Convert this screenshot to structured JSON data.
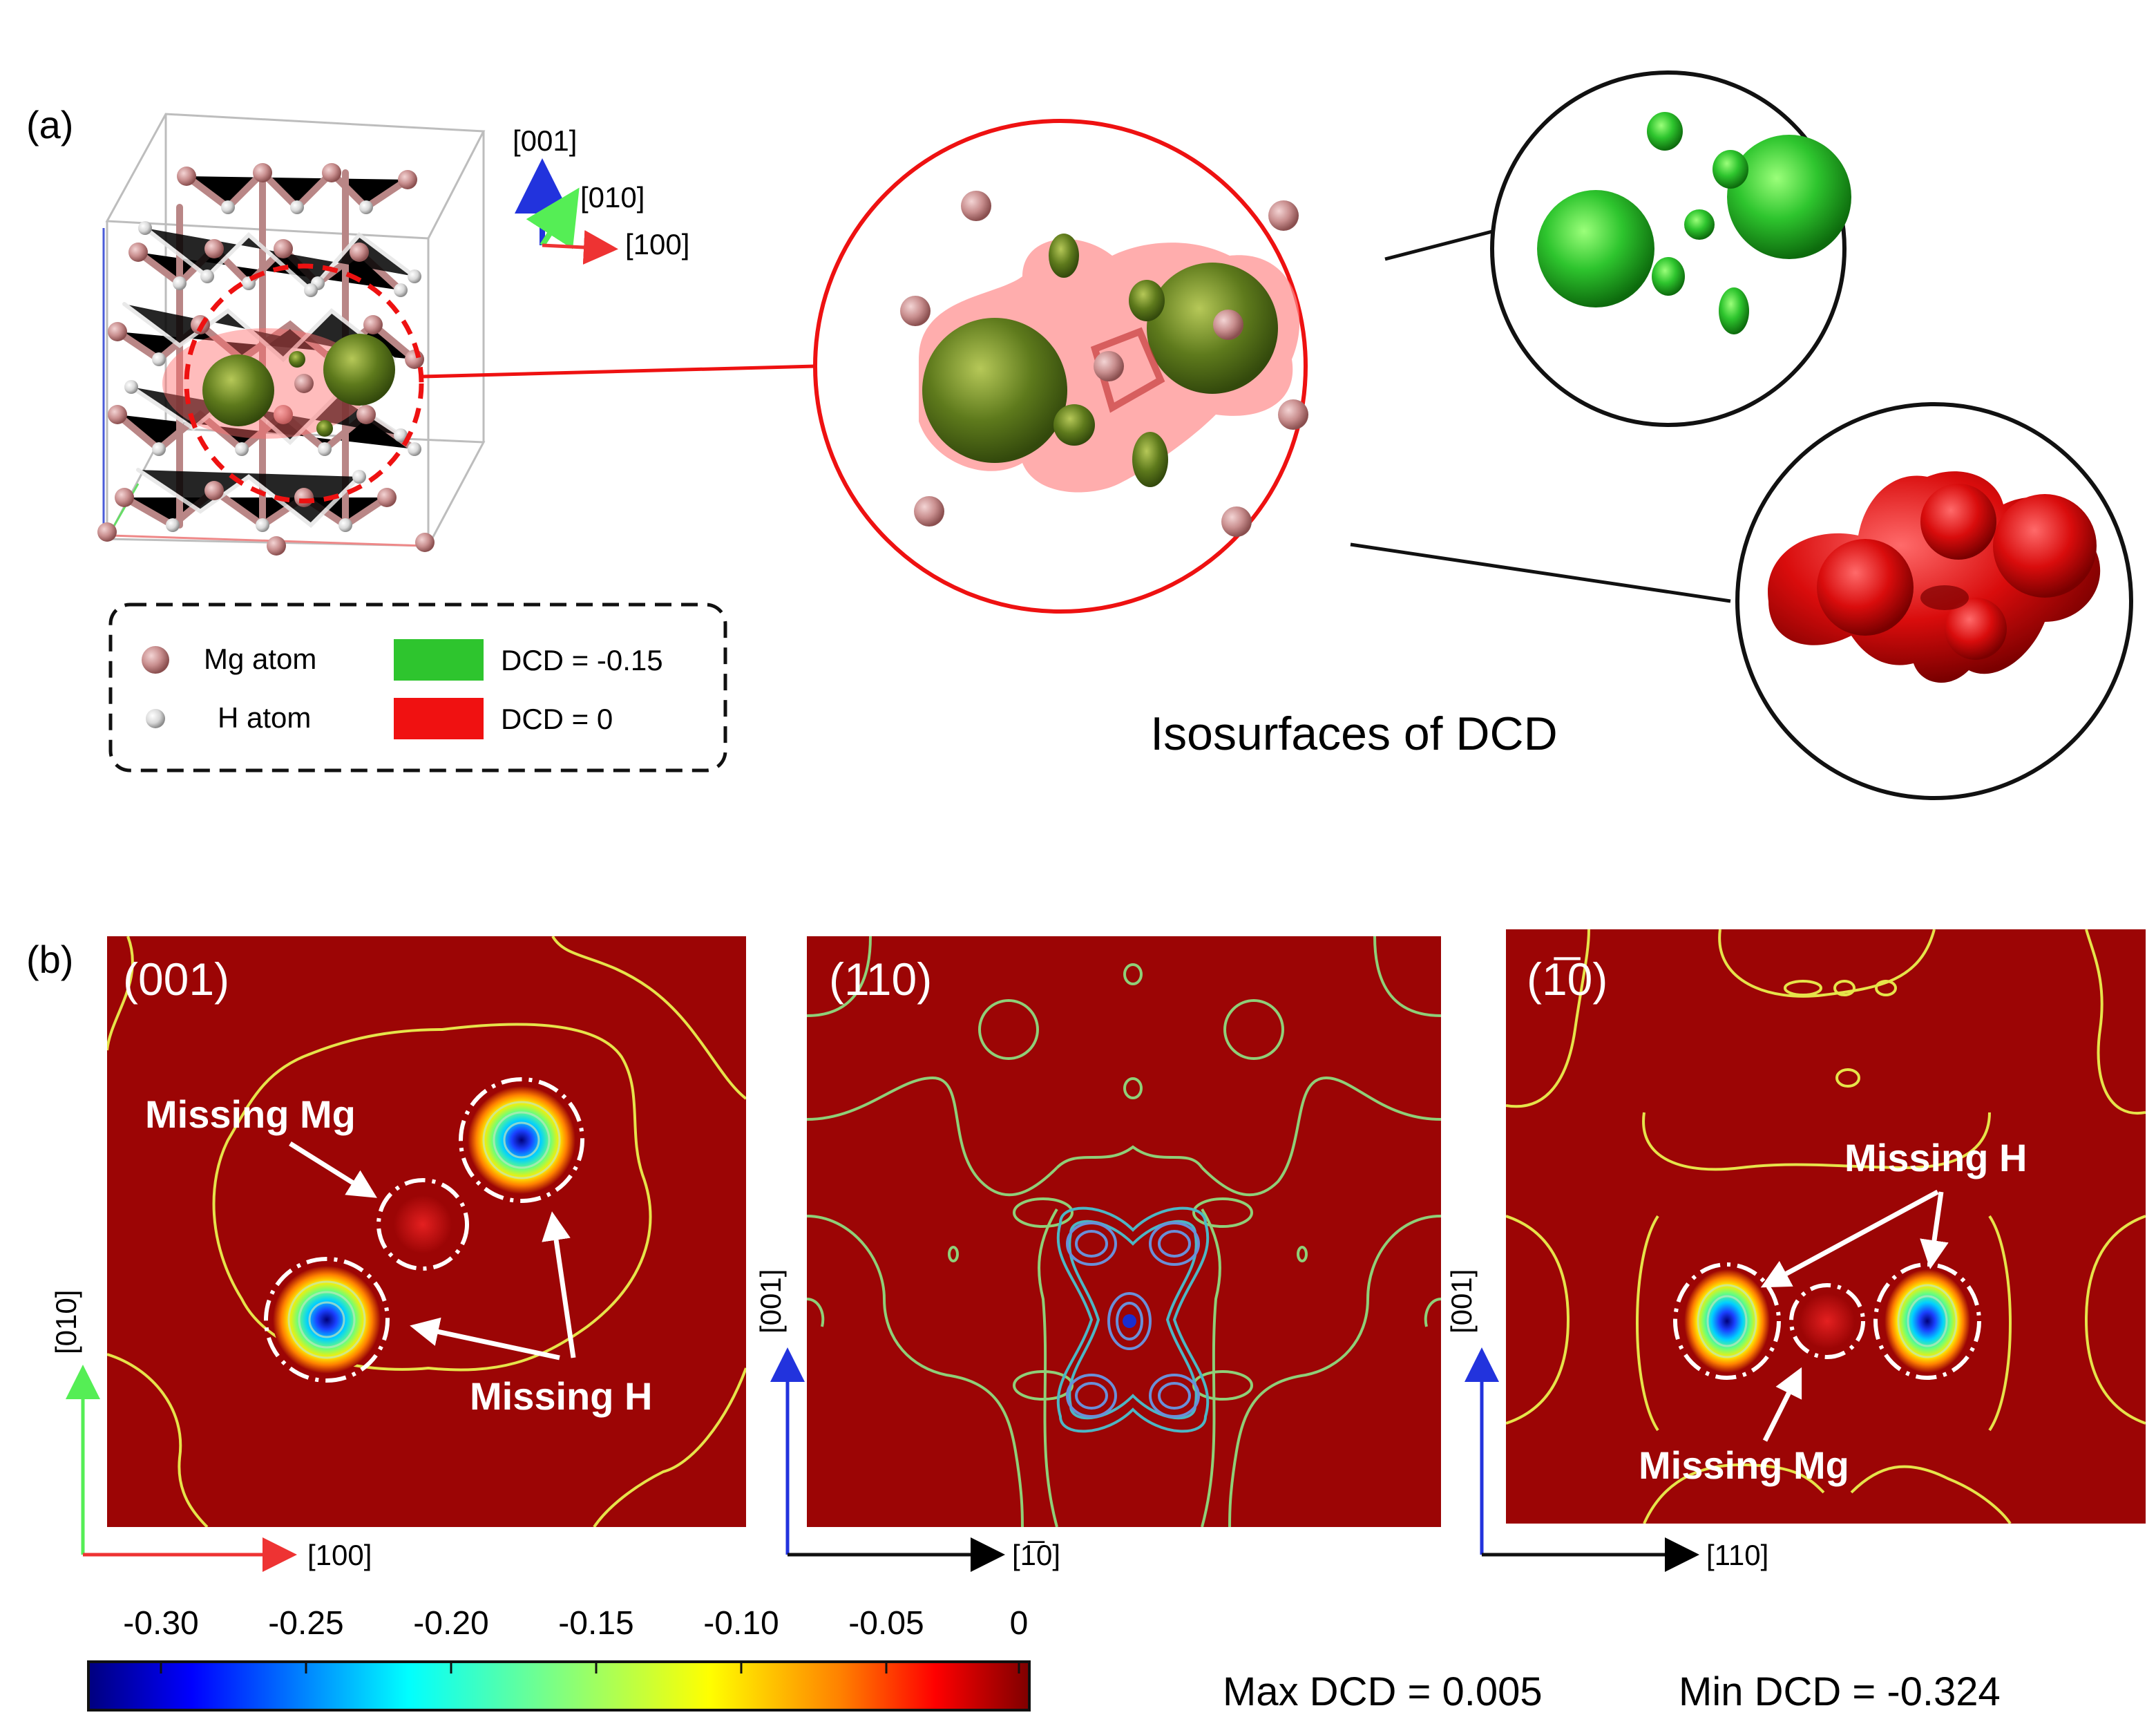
{
  "panel_a": {
    "label": "(a)",
    "axes": {
      "z": "[001]",
      "y": "[010]",
      "x": "[100]"
    },
    "legend": {
      "mg": "Mg atom",
      "h": "H atom",
      "green": "DCD = -0.15",
      "red": "DCD = 0"
    },
    "isosurface_title": "Isosurfaces of DCD"
  },
  "panel_b": {
    "label": "(b)",
    "maps": [
      {
        "plane": "(001)",
        "x_axis": "[100]",
        "y_axis": "[010]",
        "annotations": {
          "missing_mg": "Missing Mg",
          "missing_h": "Missing H"
        }
      },
      {
        "plane": "(110)",
        "x_axis": "[1̅0]",
        "y_axis": "[001]"
      },
      {
        "plane": "(1̅0)",
        "x_axis": "[110]",
        "y_axis": "[001]",
        "annotations": {
          "missing_mg": "Missing Mg",
          "missing_h": "Missing H"
        }
      }
    ],
    "colorbar": {
      "ticks": [
        "-0.30",
        "-0.25",
        "-0.20",
        "-0.15",
        "-0.10",
        "-0.05",
        "0"
      ]
    },
    "max_dcd": "Max DCD = 0.005",
    "min_dcd": "Min DCD = -0.324"
  },
  "colors": {
    "map_bg": "#9c0505",
    "green": "#2ec52e",
    "red": "#ee1111",
    "mg": "#c98f8f"
  }
}
